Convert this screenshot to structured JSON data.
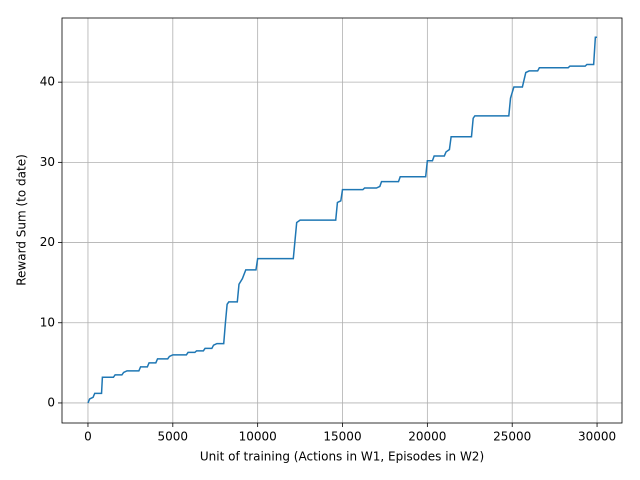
{
  "chart_data": {
    "type": "line",
    "xlabel": "Unit of training (Actions in W1, Episodes in W2)",
    "ylabel": "Reward Sum (to date)",
    "x": [
      0,
      100,
      300,
      400,
      800,
      850,
      1500,
      1600,
      2000,
      2100,
      2300,
      3000,
      3100,
      3500,
      3600,
      4000,
      4100,
      4700,
      4800,
      5000,
      5800,
      5900,
      6300,
      6400,
      6800,
      6900,
      7300,
      7400,
      7600,
      8000,
      8100,
      8200,
      8300,
      8800,
      8900,
      9100,
      9300,
      9900,
      10000,
      12100,
      12300,
      12500,
      14600,
      14700,
      14900,
      15000,
      16200,
      16300,
      17000,
      17200,
      17300,
      18300,
      18400,
      19900,
      20000,
      20300,
      20400,
      21000,
      21100,
      21300,
      21400,
      22600,
      22700,
      22800,
      24800,
      24900,
      25100,
      25600,
      25800,
      26000,
      26500,
      26600,
      28300,
      28400,
      29300,
      29400,
      29800,
      29900,
      30000
    ],
    "series": [
      {
        "color": "#1f77b4",
        "values": [
          0,
          0.5,
          0.7,
          1.2,
          1.2,
          3.2,
          3.2,
          3.5,
          3.5,
          3.8,
          4,
          4,
          4.5,
          4.5,
          5,
          5,
          5.5,
          5.5,
          5.8,
          6,
          6,
          6.3,
          6.3,
          6.5,
          6.5,
          6.8,
          6.8,
          7.2,
          7.4,
          7.4,
          10,
          12.3,
          12.6,
          12.6,
          14.8,
          15.5,
          16.6,
          16.6,
          18,
          18,
          22.5,
          22.8,
          22.8,
          25,
          25.2,
          26.6,
          26.6,
          26.8,
          26.8,
          27,
          27.6,
          27.6,
          28.2,
          28.2,
          30.2,
          30.2,
          30.8,
          30.8,
          31.3,
          31.6,
          33.2,
          33.2,
          35.5,
          35.8,
          35.8,
          38,
          39.4,
          39.4,
          41.2,
          41.4,
          41.4,
          41.8,
          41.8,
          42,
          42,
          42.2,
          42.2,
          45.6,
          45.6
        ]
      }
    ],
    "xlim": [
      -1530,
      31470
    ],
    "ylim": [
      -2.5,
      48
    ],
    "xticks": [
      0,
      5000,
      10000,
      15000,
      20000,
      25000,
      30000
    ],
    "yticks": [
      0,
      10,
      20,
      30,
      40
    ],
    "grid": true
  }
}
